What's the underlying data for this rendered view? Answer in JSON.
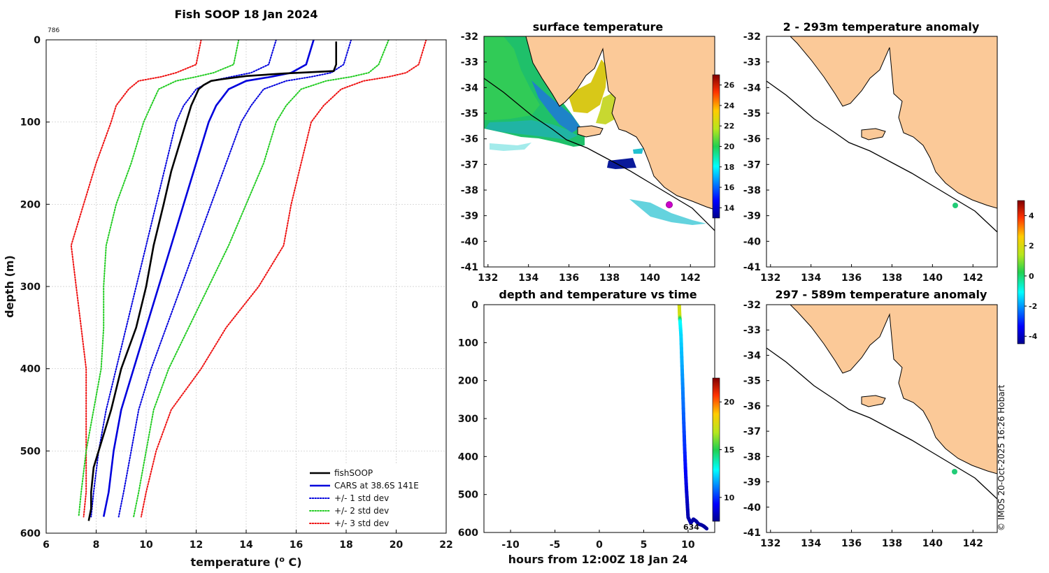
{
  "chart_data": [
    {
      "type": "line",
      "title": "Fish SOOP 18 Jan 2024",
      "corner_label": "786",
      "xlabel": "temperature (",
      "xlabel_sup": "o",
      "xlabel_end": " C)",
      "ylabel": "depth (m)",
      "xlim": [
        6,
        22
      ],
      "ylim": [
        600,
        0
      ],
      "xticks": [
        6,
        8,
        10,
        12,
        14,
        16,
        18,
        20,
        22
      ],
      "yticks": [
        0,
        100,
        200,
        300,
        400,
        500,
        600
      ],
      "depths": [
        0,
        30,
        40,
        45,
        50,
        60,
        80,
        100,
        150,
        200,
        250,
        300,
        350,
        400,
        450,
        500,
        550,
        580
      ],
      "series": [
        {
          "name": "fishSOOP",
          "color": "#000000",
          "style": "solid",
          "depths": [
            2,
            30,
            38,
            41,
            44,
            48,
            50,
            55,
            60,
            80,
            100,
            130,
            160,
            200,
            250,
            300,
            350,
            400,
            450,
            500,
            520,
            550,
            570,
            585
          ],
          "values": [
            17.6,
            17.6,
            17.5,
            15.5,
            14.0,
            13.0,
            12.6,
            12.3,
            12.1,
            11.8,
            11.6,
            11.3,
            11.0,
            10.7,
            10.3,
            10.0,
            9.6,
            9.0,
            8.6,
            8.1,
            7.9,
            7.8,
            7.8,
            7.7
          ]
        },
        {
          "name": "CARS at 38.6S 141E",
          "color": "#0000dd",
          "style": "solid",
          "values": [
            16.7,
            16.4,
            15.8,
            15.0,
            14.0,
            13.3,
            12.8,
            12.5,
            12.0,
            11.5,
            11.0,
            10.5,
            10.0,
            9.5,
            9.0,
            8.7,
            8.5,
            8.3
          ]
        },
        {
          "name": "+/- 1 std dev",
          "color": "#0000dd",
          "style": "dotted",
          "values": [
            18.2,
            17.9,
            17.4,
            16.6,
            15.6,
            14.7,
            14.2,
            13.8,
            13.2,
            12.6,
            12.0,
            11.4,
            10.8,
            10.2,
            9.7,
            9.4,
            9.1,
            8.9
          ],
          "values_lower": [
            15.2,
            14.9,
            14.2,
            13.4,
            12.6,
            12.0,
            11.5,
            11.2,
            10.8,
            10.4,
            10.0,
            9.6,
            9.2,
            8.8,
            8.4,
            8.1,
            7.9,
            7.8
          ]
        },
        {
          "name": "+/- 2 std dev",
          "color": "#22cc22",
          "style": "dotted",
          "values": [
            19.7,
            19.3,
            18.9,
            18.2,
            17.2,
            16.2,
            15.6,
            15.2,
            14.7,
            14.0,
            13.3,
            12.5,
            11.7,
            10.9,
            10.3,
            10.0,
            9.7,
            9.5
          ],
          "values_lower": [
            13.7,
            13.5,
            12.7,
            12.0,
            11.2,
            10.5,
            10.2,
            9.9,
            9.4,
            8.8,
            8.4,
            8.3,
            8.3,
            8.2,
            7.9,
            7.6,
            7.4,
            7.3
          ]
        },
        {
          "name": "+/- 3 std dev",
          "color": "#ee1111",
          "style": "dotted",
          "values": [
            21.2,
            20.9,
            20.4,
            19.7,
            18.7,
            17.8,
            17.1,
            16.6,
            16.2,
            15.8,
            15.5,
            14.5,
            13.2,
            12.2,
            11.0,
            10.4,
            10.0,
            9.8
          ],
          "values_lower": [
            12.2,
            12.0,
            11.2,
            10.6,
            9.7,
            9.3,
            8.8,
            8.6,
            8.0,
            7.5,
            7.0,
            7.2,
            7.4,
            7.6,
            7.6,
            7.6,
            7.6,
            7.5
          ]
        }
      ],
      "legend": [
        "fishSOOP",
        "CARS at 38.6S 141E",
        "+/- 1 std dev",
        "+/- 2 std dev",
        "+/- 3 std dev"
      ],
      "legend_position": "bottom-right"
    },
    {
      "type": "heatmap",
      "title": "surface temperature",
      "xticks": [
        132,
        134,
        136,
        138,
        140,
        142
      ],
      "yticks": [
        -32,
        -33,
        -34,
        -35,
        -36,
        -37,
        -38,
        -39,
        -40,
        -41
      ],
      "colorbar_ticks": [
        14,
        16,
        18,
        20,
        22,
        24,
        26
      ],
      "colorbar_range": [
        13,
        27
      ],
      "marker": {
        "lon": 141,
        "lat": -38.6,
        "color": "#cc00cc"
      }
    },
    {
      "type": "heatmap",
      "title": "2 - 293m temperature anomaly",
      "xticks": [
        132,
        134,
        136,
        138,
        140,
        142
      ],
      "yticks": [
        -32,
        -33,
        -34,
        -35,
        -36,
        -37,
        -38,
        -39,
        -40,
        -41
      ],
      "marker": {
        "lon": 141.1,
        "lat": -38.6,
        "color": "#22cc77"
      }
    },
    {
      "type": "heatmap",
      "title": "297 - 589m temperature anomaly",
      "xticks": [
        132,
        134,
        136,
        138,
        140,
        142
      ],
      "yticks": [
        -32,
        -33,
        -34,
        -35,
        -36,
        -37,
        -38,
        -39,
        -40,
        -41
      ],
      "marker": {
        "lon": 141.1,
        "lat": -38.6,
        "color": "#22cc77"
      }
    },
    {
      "type": "scatter",
      "title": "depth and temperature vs time",
      "xlabel": "hours from 12:00Z 18 Jan 24",
      "xlim": [
        -13,
        13
      ],
      "ylim": [
        600,
        0
      ],
      "xticks": [
        -10,
        -5,
        0,
        5,
        10
      ],
      "yticks": [
        0,
        100,
        200,
        300,
        400,
        500,
        600
      ],
      "colorbar_ticks": [
        10,
        15,
        20
      ],
      "colorbar_range": [
        7.5,
        22.5
      ],
      "annotation": "634",
      "track": {
        "hours": [
          9.0,
          9.05,
          9.1,
          9.2,
          9.3,
          9.4,
          9.5,
          9.6,
          9.7,
          9.8,
          9.9,
          10.0,
          10.3,
          10.6,
          10.9,
          11.2,
          11.5,
          11.8,
          12.1
        ],
        "depth": [
          0,
          30,
          45,
          80,
          150,
          220,
          300,
          370,
          430,
          480,
          520,
          560,
          575,
          565,
          570,
          578,
          580,
          584,
          590
        ],
        "temp": [
          17.6,
          17.5,
          13.0,
          12.4,
          11.8,
          11.2,
          10.6,
          10.0,
          9.4,
          8.8,
          8.3,
          8.0,
          7.9,
          7.9,
          7.8,
          7.8,
          7.8,
          7.8,
          7.7
        ]
      }
    },
    {
      "type": "colorbar",
      "name": "anomaly",
      "ticks": [
        -4,
        -2,
        0,
        2,
        4
      ],
      "range": [
        -4.5,
        5
      ]
    }
  ],
  "credit": "© IMOS 20-Oct-2025 16:26 Hobart",
  "colors": {
    "land": "#fbc998",
    "axis": "#000000"
  }
}
